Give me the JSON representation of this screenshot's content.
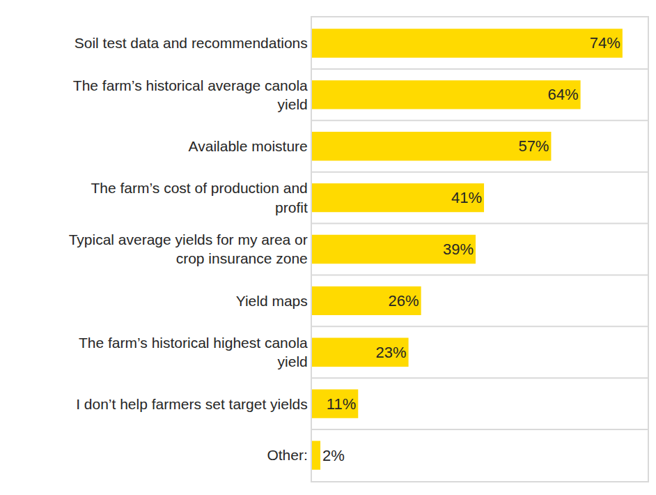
{
  "chart_data": {
    "type": "bar",
    "orientation": "horizontal",
    "categories": [
      "Soil test data and recommendations",
      "The farm’s historical average canola yield",
      "Available moisture",
      "The farm’s cost of production and profit",
      "Typical average yields for my area or crop insurance zone",
      "Yield maps",
      "The farm’s historical highest canola yield",
      "I don’t help farmers set target yields",
      "Other:"
    ],
    "values": [
      74,
      64,
      57,
      41,
      39,
      26,
      23,
      11,
      2
    ],
    "value_labels": [
      "74%",
      "64%",
      "57%",
      "41%",
      "39%",
      "26%",
      "23%",
      "11%",
      "2%"
    ],
    "color": "#ffda00",
    "xlim": [
      0,
      80
    ],
    "xticks": [],
    "tick_labels": "y",
    "data_labels": true,
    "grid": true
  }
}
